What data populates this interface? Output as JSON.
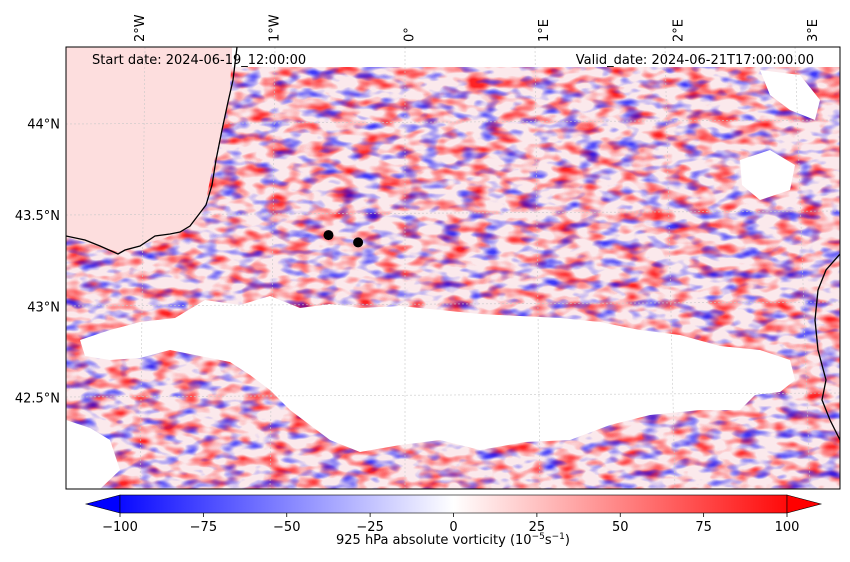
{
  "chart_data": {
    "type": "heatmap",
    "title": "",
    "variable": "925 hPa absolute vorticity",
    "start_label": "Start date: 2024-06-19_12:00:00",
    "valid_label": "Valid_date: 2024-06-21T17:00:00.00",
    "x_ticks": [
      "2°W",
      "1°W",
      "0°",
      "1°E",
      "2°E",
      "3°E"
    ],
    "x_tick_values": [
      -2,
      -1,
      0,
      1,
      2,
      3
    ],
    "y_ticks": [
      "44°N",
      "43.5°N",
      "43°N",
      "42.5°N"
    ],
    "y_tick_values": [
      44.0,
      43.5,
      43.0,
      42.5
    ],
    "xlim": [
      -2.55,
      3.2
    ],
    "ylim": [
      42.0,
      44.42
    ],
    "markers": [
      {
        "lon": -0.6,
        "lat": 43.39
      },
      {
        "lon": -0.38,
        "lat": 43.35
      }
    ],
    "colorbar": {
      "label": "925 hPa absolute vorticity (10",
      "label_exp": "−5",
      "label_unit": "s",
      "label_unit_exp": "−1",
      "label_close": ")",
      "min": -100,
      "max": 100,
      "tick_labels": [
        "−100",
        "−75",
        "−50",
        "−25",
        "0",
        "25",
        "50",
        "75",
        "100"
      ],
      "tick_values": [
        -100,
        -75,
        -50,
        -25,
        0,
        25,
        50,
        75,
        100
      ],
      "extend": "both",
      "cmap": "bwr",
      "low_color": "#0000ff",
      "mid_color": "#ffffff",
      "high_color": "#ff0000"
    }
  }
}
